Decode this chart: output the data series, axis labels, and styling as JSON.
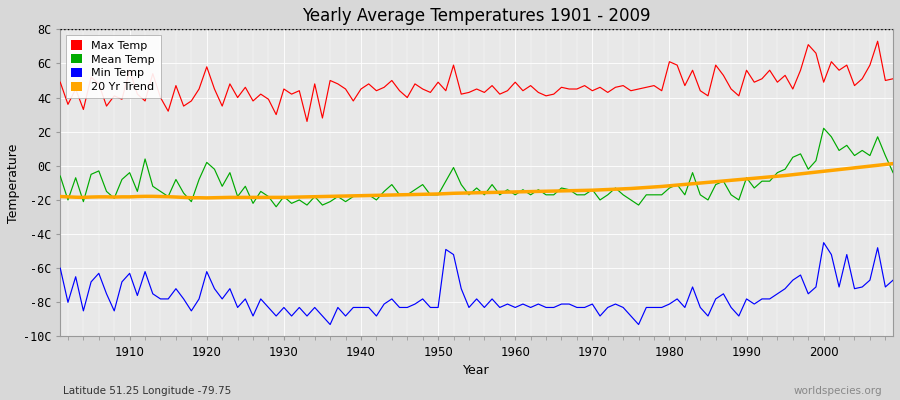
{
  "years": [
    1901,
    1902,
    1903,
    1904,
    1905,
    1906,
    1907,
    1908,
    1909,
    1910,
    1911,
    1912,
    1913,
    1914,
    1915,
    1916,
    1917,
    1918,
    1919,
    1920,
    1921,
    1922,
    1923,
    1924,
    1925,
    1926,
    1927,
    1928,
    1929,
    1930,
    1931,
    1932,
    1933,
    1934,
    1935,
    1936,
    1937,
    1938,
    1939,
    1940,
    1941,
    1942,
    1943,
    1944,
    1945,
    1946,
    1947,
    1948,
    1949,
    1950,
    1951,
    1952,
    1953,
    1954,
    1955,
    1956,
    1957,
    1958,
    1959,
    1960,
    1961,
    1962,
    1963,
    1964,
    1965,
    1966,
    1967,
    1968,
    1969,
    1970,
    1971,
    1972,
    1973,
    1974,
    1975,
    1976,
    1977,
    1978,
    1979,
    1980,
    1981,
    1982,
    1983,
    1984,
    1985,
    1986,
    1987,
    1988,
    1989,
    1990,
    1991,
    1992,
    1993,
    1994,
    1995,
    1996,
    1997,
    1998,
    1999,
    2000,
    2001,
    2002,
    2003,
    2004,
    2005,
    2006,
    2007,
    2008,
    2009
  ],
  "max_temp": [
    4.9,
    3.6,
    4.5,
    3.3,
    5.2,
    4.8,
    3.5,
    4.1,
    3.9,
    5.6,
    4.2,
    3.8,
    5.4,
    4.0,
    3.2,
    4.7,
    3.5,
    3.8,
    4.5,
    5.8,
    4.5,
    3.5,
    4.8,
    4.0,
    4.6,
    3.8,
    4.2,
    3.9,
    3.0,
    4.5,
    4.2,
    4.4,
    2.6,
    4.8,
    2.8,
    5.0,
    4.8,
    4.5,
    3.8,
    4.5,
    4.8,
    4.4,
    4.6,
    5.0,
    4.4,
    4.0,
    4.8,
    4.5,
    4.3,
    4.9,
    4.4,
    5.9,
    4.2,
    4.3,
    4.5,
    4.3,
    4.7,
    4.2,
    4.4,
    4.9,
    4.4,
    4.7,
    4.3,
    4.1,
    4.2,
    4.6,
    4.5,
    4.5,
    4.7,
    4.4,
    4.6,
    4.3,
    4.6,
    4.7,
    4.4,
    4.5,
    4.6,
    4.7,
    4.4,
    6.1,
    5.9,
    4.7,
    5.6,
    4.4,
    4.1,
    5.9,
    5.3,
    4.5,
    4.1,
    5.6,
    4.9,
    5.1,
    5.6,
    4.9,
    5.3,
    4.5,
    5.6,
    7.1,
    6.6,
    4.9,
    6.1,
    5.6,
    5.9,
    4.7,
    5.1,
    5.9,
    7.3,
    5.0,
    5.1
  ],
  "mean_temp": [
    -0.6,
    -2.0,
    -0.7,
    -2.1,
    -0.5,
    -0.3,
    -1.5,
    -1.9,
    -0.8,
    -0.4,
    -1.5,
    0.4,
    -1.2,
    -1.5,
    -1.8,
    -0.8,
    -1.6,
    -2.1,
    -0.8,
    0.2,
    -0.2,
    -1.2,
    -0.4,
    -1.8,
    -1.2,
    -2.2,
    -1.5,
    -1.8,
    -2.4,
    -1.8,
    -2.2,
    -2.0,
    -2.3,
    -1.8,
    -2.3,
    -2.1,
    -1.8,
    -2.1,
    -1.8,
    -1.7,
    -1.7,
    -2.0,
    -1.5,
    -1.1,
    -1.7,
    -1.7,
    -1.4,
    -1.1,
    -1.7,
    -1.7,
    -0.9,
    -0.1,
    -1.1,
    -1.7,
    -1.3,
    -1.7,
    -1.1,
    -1.7,
    -1.4,
    -1.7,
    -1.4,
    -1.7,
    -1.4,
    -1.7,
    -1.7,
    -1.3,
    -1.4,
    -1.7,
    -1.7,
    -1.4,
    -2.0,
    -1.7,
    -1.3,
    -1.7,
    -2.0,
    -2.3,
    -1.7,
    -1.7,
    -1.7,
    -1.3,
    -1.1,
    -1.7,
    -0.4,
    -1.7,
    -2.0,
    -1.1,
    -0.9,
    -1.7,
    -2.0,
    -0.7,
    -1.3,
    -0.9,
    -0.9,
    -0.4,
    -0.2,
    0.5,
    0.7,
    -0.2,
    0.3,
    2.2,
    1.7,
    0.9,
    1.2,
    0.6,
    0.9,
    0.6,
    1.7,
    0.6,
    -0.4
  ],
  "min_temp": [
    -6.0,
    -8.0,
    -6.5,
    -8.5,
    -6.8,
    -6.3,
    -7.5,
    -8.5,
    -6.8,
    -6.3,
    -7.6,
    -6.2,
    -7.5,
    -7.8,
    -7.8,
    -7.2,
    -7.8,
    -8.5,
    -7.8,
    -6.2,
    -7.2,
    -7.8,
    -7.2,
    -8.3,
    -7.8,
    -8.8,
    -7.8,
    -8.3,
    -8.8,
    -8.3,
    -8.8,
    -8.3,
    -8.8,
    -8.3,
    -8.8,
    -9.3,
    -8.3,
    -8.8,
    -8.3,
    -8.3,
    -8.3,
    -8.8,
    -8.1,
    -7.8,
    -8.3,
    -8.3,
    -8.1,
    -7.8,
    -8.3,
    -8.3,
    -4.9,
    -5.2,
    -7.2,
    -8.3,
    -7.8,
    -8.3,
    -7.8,
    -8.3,
    -8.1,
    -8.3,
    -8.1,
    -8.3,
    -8.1,
    -8.3,
    -8.3,
    -8.1,
    -8.1,
    -8.3,
    -8.3,
    -8.1,
    -8.8,
    -8.3,
    -8.1,
    -8.3,
    -8.8,
    -9.3,
    -8.3,
    -8.3,
    -8.3,
    -8.1,
    -7.8,
    -8.3,
    -7.1,
    -8.3,
    -8.8,
    -7.8,
    -7.5,
    -8.3,
    -8.8,
    -7.8,
    -8.1,
    -7.8,
    -7.8,
    -7.5,
    -7.2,
    -6.7,
    -6.4,
    -7.5,
    -7.1,
    -4.5,
    -5.2,
    -7.1,
    -5.2,
    -7.2,
    -7.1,
    -6.7,
    -4.8,
    -7.1,
    -6.7
  ],
  "trend_20yr": [
    -1.8,
    -1.82,
    -1.84,
    -1.85,
    -1.83,
    -1.82,
    -1.82,
    -1.83,
    -1.82,
    -1.82,
    -1.8,
    -1.79,
    -1.79,
    -1.8,
    -1.81,
    -1.83,
    -1.85,
    -1.87,
    -1.87,
    -1.88,
    -1.87,
    -1.86,
    -1.85,
    -1.85,
    -1.85,
    -1.85,
    -1.85,
    -1.85,
    -1.85,
    -1.85,
    -1.84,
    -1.83,
    -1.82,
    -1.81,
    -1.8,
    -1.79,
    -1.78,
    -1.77,
    -1.76,
    -1.75,
    -1.74,
    -1.73,
    -1.72,
    -1.71,
    -1.7,
    -1.69,
    -1.68,
    -1.67,
    -1.66,
    -1.65,
    -1.63,
    -1.61,
    -1.6,
    -1.59,
    -1.58,
    -1.57,
    -1.56,
    -1.55,
    -1.54,
    -1.53,
    -1.52,
    -1.51,
    -1.5,
    -1.49,
    -1.48,
    -1.47,
    -1.46,
    -1.45,
    -1.44,
    -1.43,
    -1.41,
    -1.39,
    -1.37,
    -1.35,
    -1.33,
    -1.3,
    -1.27,
    -1.24,
    -1.21,
    -1.17,
    -1.13,
    -1.09,
    -1.05,
    -1.01,
    -0.97,
    -0.93,
    -0.89,
    -0.85,
    -0.81,
    -0.77,
    -0.73,
    -0.69,
    -0.65,
    -0.61,
    -0.57,
    -0.52,
    -0.47,
    -0.42,
    -0.37,
    -0.32,
    -0.27,
    -0.22,
    -0.17,
    -0.12,
    -0.07,
    -0.02,
    0.03,
    0.08,
    0.13
  ],
  "title": "Yearly Average Temperatures 1901 - 2009",
  "xlabel": "Year",
  "ylabel": "Temperature",
  "xlim": [
    1901,
    2009
  ],
  "ylim": [
    -10,
    8
  ],
  "yticks": [
    -10,
    -8,
    -6,
    -4,
    -2,
    0,
    2,
    4,
    6,
    8
  ],
  "ytick_labels": [
    "-10C",
    "-8C",
    "-6C",
    "-4C",
    "-2C",
    "0C",
    "2C",
    "4C",
    "6C",
    "8C"
  ],
  "xticks": [
    1910,
    1920,
    1930,
    1940,
    1950,
    1960,
    1970,
    1980,
    1990,
    2000
  ],
  "color_max": "#ff0000",
  "color_mean": "#00aa00",
  "color_min": "#0000ff",
  "color_trend": "#ffa500",
  "color_dotted": "#000000",
  "bg_color": "#d8d8d8",
  "bg_plot": "#e8e8e8",
  "subtitle_lat": "Latitude 51.25 Longitude -79.75",
  "watermark": "worldspecies.org",
  "legend_labels": [
    "Max Temp",
    "Mean Temp",
    "Min Temp",
    "20 Yr Trend"
  ],
  "dotted_line_y": 8,
  "grid_color": "#ffffff",
  "legend_square_colors": [
    "#ff0000",
    "#00aa00",
    "#0000ff",
    "#ffa500"
  ]
}
